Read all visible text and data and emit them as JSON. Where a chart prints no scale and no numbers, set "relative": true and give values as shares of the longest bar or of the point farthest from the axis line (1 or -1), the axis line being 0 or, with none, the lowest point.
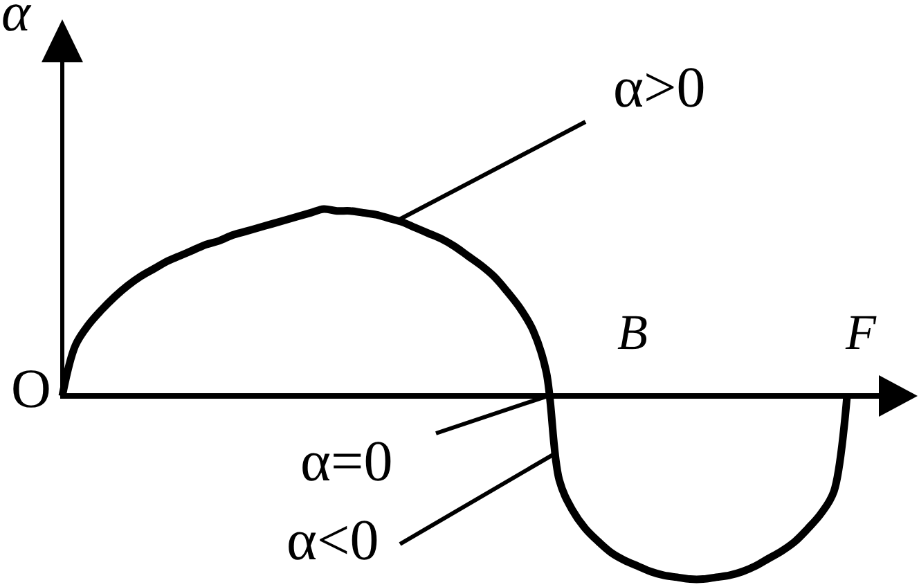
{
  "chart_data": {
    "type": "line",
    "relative": true,
    "xlabel": "F",
    "ylabel": "α",
    "annotations": [
      "α>0",
      "B",
      "O",
      "α=0",
      "α<0"
    ],
    "categories": [
      null,
      null,
      null,
      null,
      null,
      null,
      null,
      null,
      null,
      null,
      null,
      null,
      null,
      null,
      null,
      null,
      null,
      null,
      null,
      null,
      null,
      null,
      null,
      null,
      null,
      null,
      null,
      null,
      null,
      null,
      null,
      null,
      null,
      null,
      null,
      null,
      null,
      null,
      null,
      null,
      null,
      null,
      null,
      null,
      null,
      null,
      null,
      null,
      null,
      null,
      null,
      null,
      null,
      null,
      null,
      null,
      null,
      null,
      null,
      null,
      null
    ],
    "values": [
      0,
      0.27,
      0.38,
      0.46,
      0.53,
      0.59,
      0.64,
      0.68,
      0.72,
      0.75,
      0.78,
      0.81,
      0.83,
      0.86,
      0.88,
      0.9,
      0.92,
      0.94,
      0.96,
      0.98,
      1,
      0.99,
      0.99,
      0.98,
      0.97,
      0.95,
      0.93,
      0.9,
      0.87,
      0.84,
      0.8,
      0.75,
      0.7,
      0.64,
      0.56,
      0.47,
      0.35,
      0.13,
      -0.45,
      -0.61,
      -0.71,
      -0.78,
      -0.84,
      -0.88,
      -0.91,
      -0.94,
      -0.96,
      -0.97,
      -0.98,
      -0.98,
      -0.97,
      -0.96,
      -0.94,
      -0.91,
      -0.87,
      -0.83,
      -0.78,
      -0.71,
      -0.63,
      -0.51,
      0
    ],
    "color": "#000000",
    "tick_labels": false
  }
}
